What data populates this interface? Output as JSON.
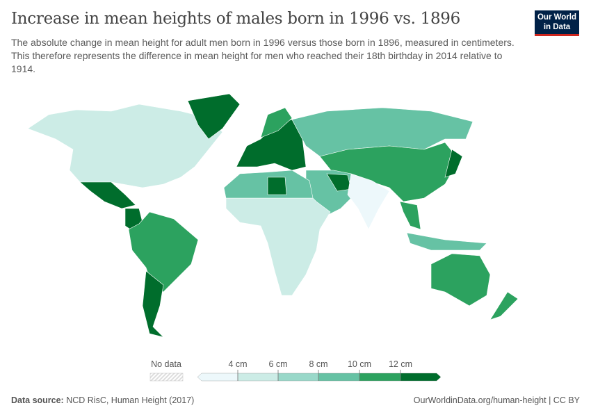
{
  "header": {
    "title": "Increase in mean heights of males born in 1996 vs. 1896",
    "subtitle": "The absolute change in mean height for adult men born in 1996 versus those born in 1896, measured in centimeters. This therefore represents the difference in mean height for men who reached their 18th birthday in 2014 relative to 1914.",
    "logo_text": "Our World in Data"
  },
  "chart_data": {
    "type": "choropleth",
    "unit": "cm",
    "legend": {
      "no_data_label": "No data",
      "tick_labels": [
        "4 cm",
        "6 cm",
        "8 cm",
        "10 cm",
        "12 cm"
      ],
      "bins": [
        {
          "range": "<4",
          "color": "#edf8fb"
        },
        {
          "range": "4-6",
          "color": "#ccece6"
        },
        {
          "range": "6-8",
          "color": "#99d8c9"
        },
        {
          "range": "8-10",
          "color": "#66c2a4"
        },
        {
          "range": "10-12",
          "color": "#2ca25f"
        },
        {
          "range": ">12",
          "color": "#006d2c"
        }
      ],
      "no_data_color": "#e6e6e6"
    },
    "regions": [
      {
        "name": "Canada / United States",
        "bin": "4-6"
      },
      {
        "name": "Mexico",
        "bin": ">12"
      },
      {
        "name": "Colombia",
        "bin": ">12"
      },
      {
        "name": "Brazil",
        "bin": "10-12"
      },
      {
        "name": "Argentina",
        "bin": ">12"
      },
      {
        "name": "Greenland",
        "bin": ">12"
      },
      {
        "name": "Europe",
        "bin": ">12"
      },
      {
        "name": "Scandinavia",
        "bin": "10-12"
      },
      {
        "name": "Russia",
        "bin": "8-10"
      },
      {
        "name": "China",
        "bin": "10-12"
      },
      {
        "name": "Middle East",
        "bin": "8-10"
      },
      {
        "name": "Iran",
        "bin": ">12"
      },
      {
        "name": "India",
        "bin": "<4"
      },
      {
        "name": "Sub-Saharan Africa",
        "bin": "4-6"
      },
      {
        "name": "North Africa",
        "bin": "8-10"
      },
      {
        "name": "Libya",
        "bin": ">12"
      },
      {
        "name": "Southeast Asia",
        "bin": "10-12"
      },
      {
        "name": "Indonesia",
        "bin": "8-10"
      },
      {
        "name": "Japan",
        "bin": ">12"
      },
      {
        "name": "Australia",
        "bin": "10-12"
      },
      {
        "name": "New Zealand",
        "bin": "10-12"
      }
    ]
  },
  "footer": {
    "source_label": "Data source:",
    "source": "NCD RisC, Human Height (2017)",
    "url": "OurWorldinData.org/human-height | CC BY"
  }
}
